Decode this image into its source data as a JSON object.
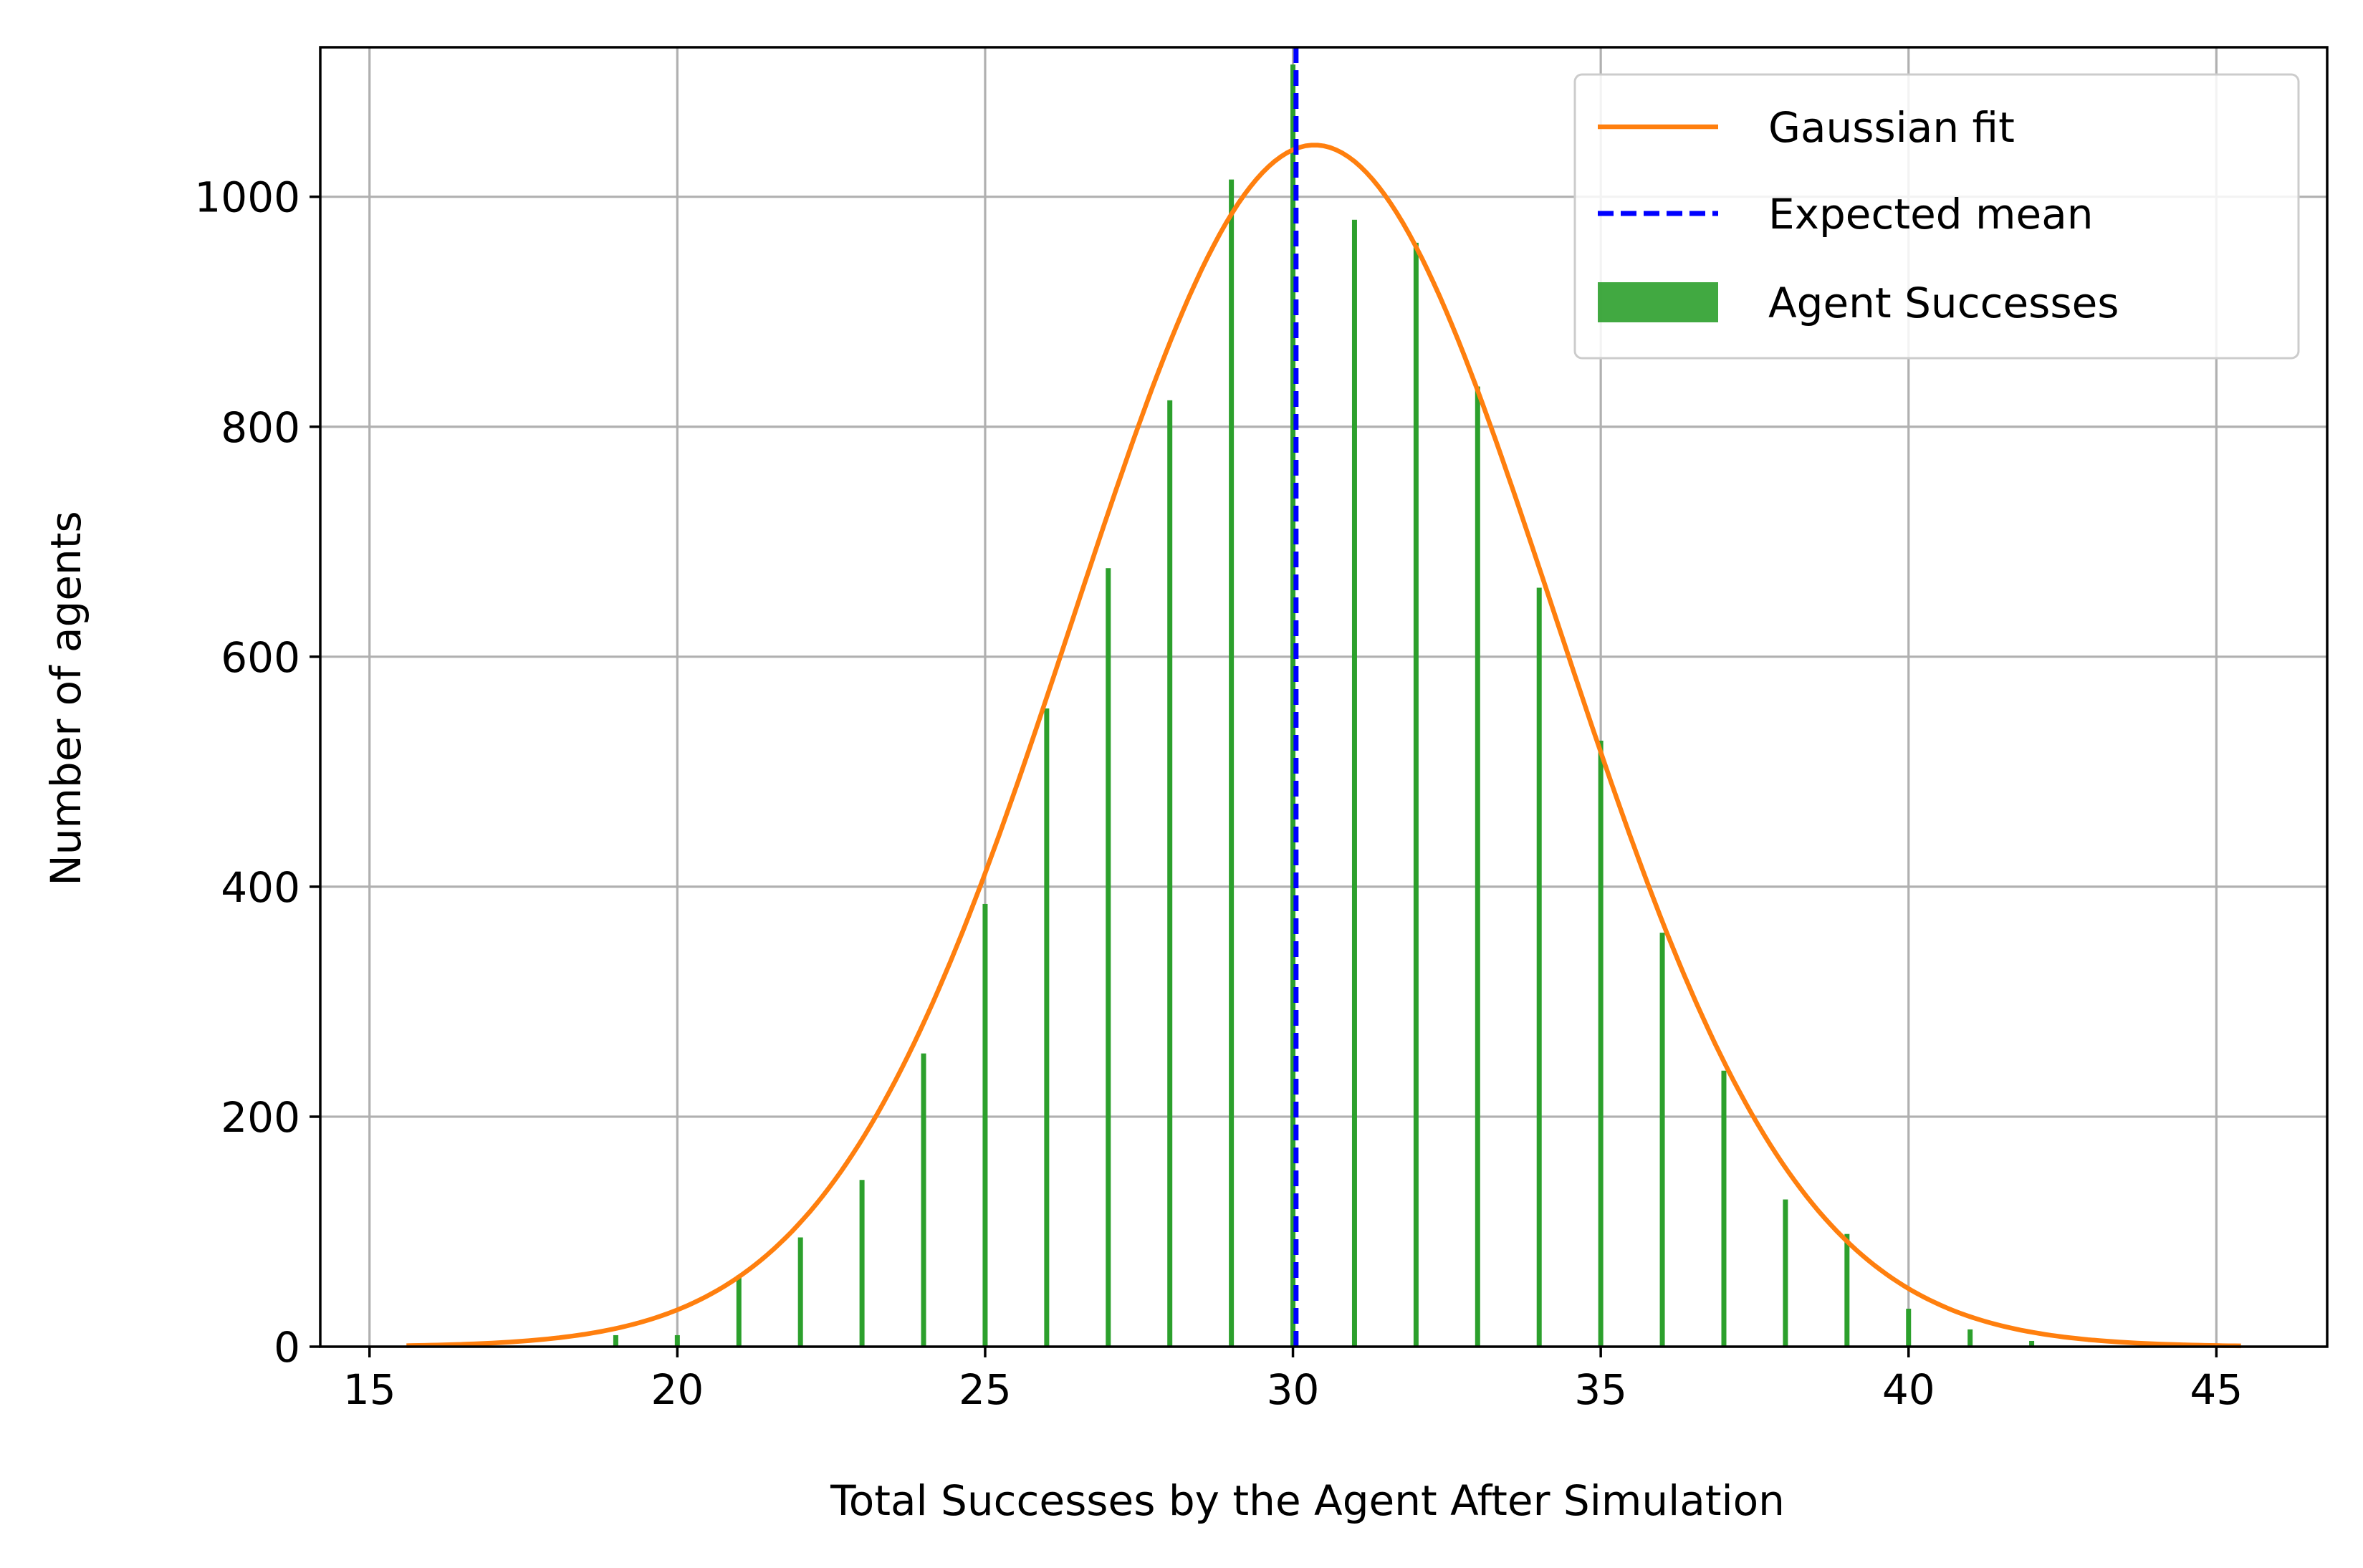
{
  "chart_data": {
    "type": "bar",
    "title": "",
    "xlabel": "Total Successes by the Agent After Simulation",
    "ylabel": "Number of agents",
    "xlim": [
      14.2,
      46.8
    ],
    "ylim": [
      0,
      1130
    ],
    "xticks": [
      15,
      20,
      25,
      30,
      35,
      40,
      45
    ],
    "yticks": [
      0,
      200,
      400,
      600,
      800,
      1000
    ],
    "grid": true,
    "legend_position": "top-right",
    "series": [
      {
        "name": "Agent Successes",
        "kind": "bar",
        "color": "#2ca02c",
        "x": [
          19,
          20,
          21,
          22,
          23,
          24,
          25,
          26,
          27,
          28,
          29,
          30,
          31,
          32,
          33,
          34,
          35,
          36,
          37,
          38,
          39,
          40,
          41,
          42
        ],
        "values": [
          10,
          10,
          62,
          95,
          145,
          255,
          385,
          555,
          677,
          823,
          1015,
          1115,
          980,
          960,
          835,
          660,
          527,
          360,
          240,
          128,
          98,
          33,
          15,
          5
        ]
      },
      {
        "name": "Gaussian fit",
        "kind": "line",
        "color": "#ff7f0e",
        "mean": 30.35,
        "sigma": 3.92,
        "amplitude": 1045,
        "x_range": [
          15.6,
          45.4
        ]
      },
      {
        "name": "Expected mean",
        "kind": "vline",
        "color": "#0000ff",
        "style": "dashed",
        "x": 30.05
      }
    ]
  }
}
